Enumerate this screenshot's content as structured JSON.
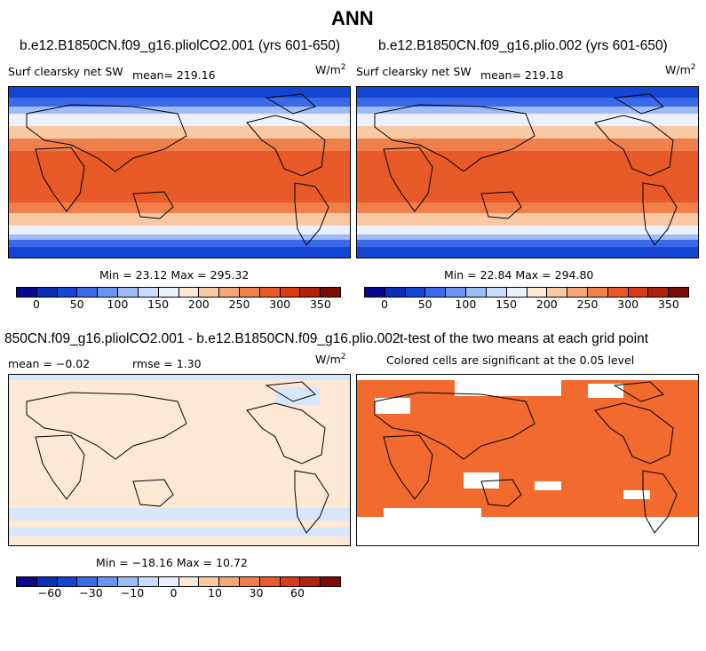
{
  "main_title": "ANN",
  "panels": [
    {
      "title": "b.e12.B1850CN.f09_g16.pliolCO2.001 (yrs 601-650)",
      "left_label": "Surf clearsky net SW",
      "mean_label": "mean= 219.16",
      "units_base": "W/m",
      "units_exp": "2",
      "minmax": "Min =  23.12 Max = 295.32"
    },
    {
      "title": "b.e12.B1850CN.f09_g16.plio.002 (yrs 601-650)",
      "left_label": "Surf clearsky net SW",
      "mean_label": "mean= 219.18",
      "units_base": "W/m",
      "units_exp": "2",
      "minmax": "Min =  22.84 Max = 294.80"
    },
    {
      "title": "850CN.f09_g16.pliolCO2.001 - b.e12.B1850CN.f09_g16.plio.002",
      "mean_label": "mean =  −0.02",
      "rmse_label": "rmse =   1.30",
      "units_base": "W/m",
      "units_exp": "2",
      "minmax": "Min = −18.16 Max =  10.72"
    },
    {
      "title": "t-test of the two means at each grid point",
      "subtitle": "Colored cells are significant at the 0.05 level"
    }
  ],
  "colorbar_abs": {
    "ticks": [
      "0",
      "50",
      "100",
      "150",
      "200",
      "250",
      "300",
      "350"
    ]
  },
  "colorbar_diff": {
    "ticks": [
      "−60",
      "−30",
      "−10",
      "0",
      "10",
      "30",
      "60"
    ]
  },
  "colors": {
    "scale": [
      "#08088c",
      "#0b2fb4",
      "#1446d6",
      "#3a6ae8",
      "#6b93f2",
      "#9dbcf8",
      "#c8dbfb",
      "#eaf1fd",
      "#fde8d6",
      "#f9c9a4",
      "#f5a676",
      "#f0804b",
      "#e85a28",
      "#d73c16",
      "#b0230d",
      "#7a0b05"
    ],
    "ocean_polar": "#1446d6",
    "ocean_tropics": "#e85a28",
    "diff_background": "#fde8d6",
    "diff_negative": "#d7e6fb",
    "ttest_fill": "#f26a2d",
    "ttest_gap": "#ffffff"
  }
}
